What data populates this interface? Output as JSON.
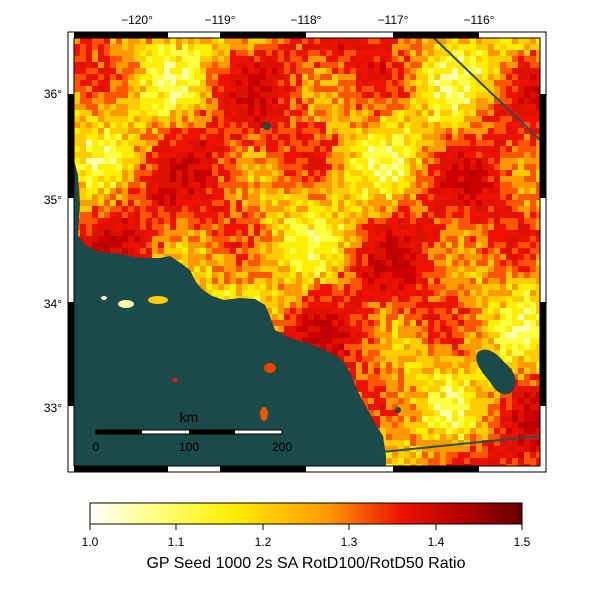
{
  "map": {
    "lon_ticks": [
      "−120°",
      "−119°",
      "−118°",
      "−117°",
      "−116°"
    ],
    "lat_ticks": [
      "36°",
      "35°",
      "34°",
      "33°"
    ],
    "scale_bar": {
      "unit": "km",
      "labels": [
        "0",
        "100",
        "200"
      ]
    },
    "colors": {
      "ocean": "#1c4a4a",
      "fault_line": "#2f4f4f"
    }
  },
  "colorbar": {
    "title": "GP Seed 1000 2s SA RotD100/RotD50 Ratio",
    "tick_labels": [
      "1.0",
      "1.1",
      "1.2",
      "1.3",
      "1.4",
      "1.5"
    ],
    "range": [
      1.0,
      1.5
    ],
    "stops": [
      "#ffffff",
      "#ffff66",
      "#ffee00",
      "#ff9900",
      "#ee1100",
      "#aa0000",
      "#660000"
    ]
  }
}
